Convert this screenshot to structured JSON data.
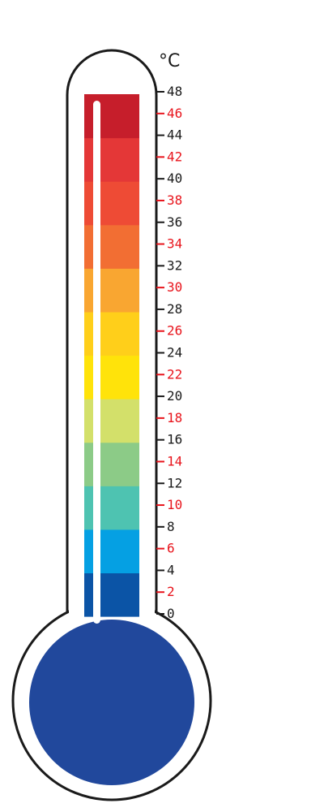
{
  "unit_label": "°C",
  "scale": {
    "min": 0,
    "max": 48,
    "ticks": [
      {
        "value": 48,
        "label": "48",
        "color": "#1a1a1a"
      },
      {
        "value": 46,
        "label": "46",
        "color": "#e8141c"
      },
      {
        "value": 44,
        "label": "44",
        "color": "#1a1a1a"
      },
      {
        "value": 42,
        "label": "42",
        "color": "#e8141c"
      },
      {
        "value": 40,
        "label": "40",
        "color": "#1a1a1a"
      },
      {
        "value": 38,
        "label": "38",
        "color": "#e8141c"
      },
      {
        "value": 36,
        "label": "36",
        "color": "#1a1a1a"
      },
      {
        "value": 34,
        "label": "34",
        "color": "#e8141c"
      },
      {
        "value": 32,
        "label": "32",
        "color": "#1a1a1a"
      },
      {
        "value": 30,
        "label": "30",
        "color": "#e8141c"
      },
      {
        "value": 28,
        "label": "28",
        "color": "#1a1a1a"
      },
      {
        "value": 26,
        "label": "26",
        "color": "#e8141c"
      },
      {
        "value": 24,
        "label": "24",
        "color": "#1a1a1a"
      },
      {
        "value": 22,
        "label": "22",
        "color": "#e8141c"
      },
      {
        "value": 20,
        "label": "20",
        "color": "#1a1a1a"
      },
      {
        "value": 18,
        "label": "18",
        "color": "#e8141c"
      },
      {
        "value": 16,
        "label": "16",
        "color": "#1a1a1a"
      },
      {
        "value": 14,
        "label": "14",
        "color": "#e8141c"
      },
      {
        "value": 12,
        "label": "12",
        "color": "#1a1a1a"
      },
      {
        "value": 10,
        "label": "10",
        "color": "#e8141c"
      },
      {
        "value": 8,
        "label": "8",
        "color": "#1a1a1a"
      },
      {
        "value": 6,
        "label": "6",
        "color": "#e8141c"
      },
      {
        "value": 4,
        "label": "4",
        "color": "#1a1a1a"
      },
      {
        "value": 2,
        "label": "2",
        "color": "#e8141c"
      },
      {
        "value": 0,
        "label": "0",
        "color": "#1a1a1a"
      }
    ]
  },
  "color_bands": [
    {
      "from": 0,
      "to": 4,
      "color": "#0b54a6"
    },
    {
      "from": 4,
      "to": 8,
      "color": "#05a0e3"
    },
    {
      "from": 8,
      "to": 12,
      "color": "#4ec3b1"
    },
    {
      "from": 12,
      "to": 16,
      "color": "#8ccb87"
    },
    {
      "from": 16,
      "to": 20,
      "color": "#d3e06a"
    },
    {
      "from": 20,
      "to": 24,
      "color": "#ffe30a"
    },
    {
      "from": 24,
      "to": 28,
      "color": "#ffcf1a"
    },
    {
      "from": 28,
      "to": 32,
      "color": "#f9a631"
    },
    {
      "from": 32,
      "to": 36,
      "color": "#f26e33"
    },
    {
      "from": 36,
      "to": 40,
      "color": "#ee4b35"
    },
    {
      "from": 40,
      "to": 44,
      "color": "#e43737"
    },
    {
      "from": 44,
      "to": 48,
      "color": "#c61e2b"
    }
  ],
  "bulb_color": "#21489c",
  "outline_color": "#1a1a1a",
  "mercury_color": "#ffffff"
}
